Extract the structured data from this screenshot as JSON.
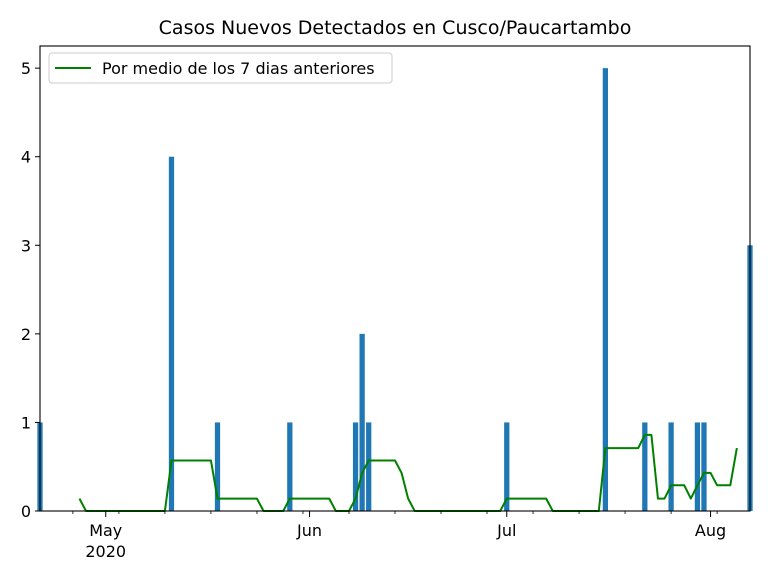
{
  "chart_data": {
    "type": "bar",
    "title": "Casos Nuevos Detectados en Cusco/Paucartambo",
    "xlabel": "",
    "ylabel": "",
    "ylim": [
      0,
      5.25
    ],
    "xlim": [
      "2020-04-21",
      "2020-08-07"
    ],
    "y_ticks": [
      0,
      1,
      2,
      3,
      4,
      5
    ],
    "x_major_ticks": [
      {
        "date": "2020-05-01",
        "label": "May",
        "sublabel": "2020"
      },
      {
        "date": "2020-06-01",
        "label": "Jun"
      },
      {
        "date": "2020-07-01",
        "label": "Jul"
      },
      {
        "date": "2020-08-01",
        "label": "Aug"
      }
    ],
    "x_minor_ticks": [
      "2020-04-26",
      "2020-05-03",
      "2020-05-10",
      "2020-05-17",
      "2020-05-24",
      "2020-05-31",
      "2020-06-07",
      "2020-06-14",
      "2020-06-21",
      "2020-06-28",
      "2020-07-05",
      "2020-07-12",
      "2020-07-19",
      "2020-07-26",
      "2020-08-02"
    ],
    "grid": false,
    "legend_position": "top-left",
    "bar_color": "#1f77b4",
    "bars": [
      {
        "date": "2020-04-21",
        "value": 1
      },
      {
        "date": "2020-05-11",
        "value": 4
      },
      {
        "date": "2020-05-18",
        "value": 1
      },
      {
        "date": "2020-05-29",
        "value": 1
      },
      {
        "date": "2020-06-08",
        "value": 1
      },
      {
        "date": "2020-06-09",
        "value": 2
      },
      {
        "date": "2020-06-10",
        "value": 1
      },
      {
        "date": "2020-07-01",
        "value": 1
      },
      {
        "date": "2020-07-16",
        "value": 5
      },
      {
        "date": "2020-07-22",
        "value": 1
      },
      {
        "date": "2020-07-26",
        "value": 1
      },
      {
        "date": "2020-07-30",
        "value": 1
      },
      {
        "date": "2020-07-31",
        "value": 1
      },
      {
        "date": "2020-08-07",
        "value": 3
      }
    ],
    "series": [
      {
        "name": "Por medio de los 7 dias anteriores",
        "color": "#008000",
        "points": [
          [
            "2020-04-27",
            0.14
          ],
          [
            "2020-04-28",
            0
          ],
          [
            "2020-05-10",
            0
          ],
          [
            "2020-05-11",
            0.57
          ],
          [
            "2020-05-17",
            0.57
          ],
          [
            "2020-05-18",
            0.14
          ],
          [
            "2020-05-24",
            0.14
          ],
          [
            "2020-05-25",
            0
          ],
          [
            "2020-05-28",
            0
          ],
          [
            "2020-05-29",
            0.14
          ],
          [
            "2020-06-04",
            0.14
          ],
          [
            "2020-06-05",
            0
          ],
          [
            "2020-06-07",
            0
          ],
          [
            "2020-06-08",
            0.14
          ],
          [
            "2020-06-09",
            0.43
          ],
          [
            "2020-06-10",
            0.57
          ],
          [
            "2020-06-14",
            0.57
          ],
          [
            "2020-06-15",
            0.43
          ],
          [
            "2020-06-16",
            0.14
          ],
          [
            "2020-06-17",
            0
          ],
          [
            "2020-06-30",
            0
          ],
          [
            "2020-07-01",
            0.14
          ],
          [
            "2020-07-07",
            0.14
          ],
          [
            "2020-07-08",
            0
          ],
          [
            "2020-07-15",
            0
          ],
          [
            "2020-07-16",
            0.71
          ],
          [
            "2020-07-21",
            0.71
          ],
          [
            "2020-07-22",
            0.86
          ],
          [
            "2020-07-23",
            0.86
          ],
          [
            "2020-07-24",
            0.14
          ],
          [
            "2020-07-25",
            0.14
          ],
          [
            "2020-07-26",
            0.29
          ],
          [
            "2020-07-28",
            0.29
          ],
          [
            "2020-07-29",
            0.14
          ],
          [
            "2020-07-30",
            0.29
          ],
          [
            "2020-07-31",
            0.43
          ],
          [
            "2020-08-01",
            0.43
          ],
          [
            "2020-08-02",
            0.29
          ],
          [
            "2020-08-04",
            0.29
          ],
          [
            "2020-08-05",
            0.71
          ]
        ]
      }
    ]
  }
}
